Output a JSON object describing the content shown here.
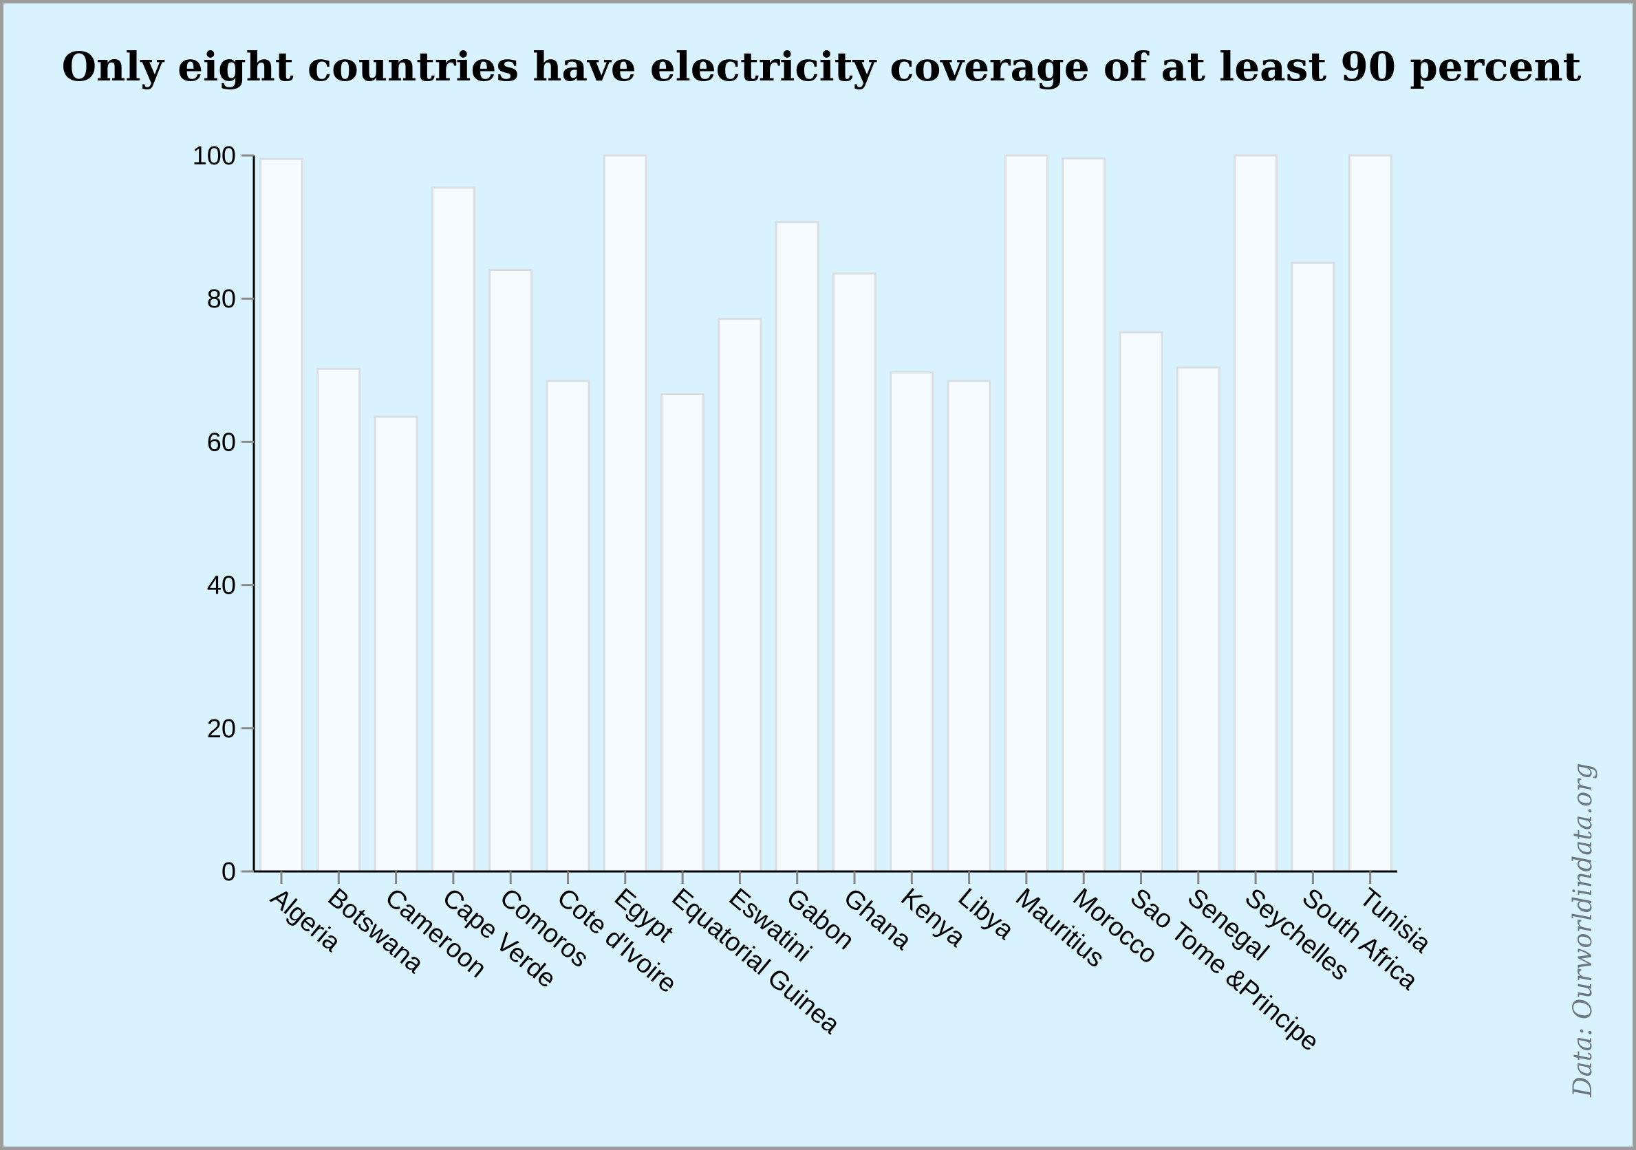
{
  "chart_data": {
    "type": "bar",
    "title": "Only eight countries have electricity coverage of at least 90 percent",
    "xlabel": "",
    "ylabel": "",
    "ylim": [
      0,
      100
    ],
    "yticks": [
      "0",
      "20",
      "40",
      "60",
      "80",
      "100"
    ],
    "categories": [
      "Algeria",
      "Botswana",
      "Cameroon",
      "Cape Verde",
      "Comoros",
      "Cote d'Ivoire",
      "Egypt",
      "Equatorial Guinea",
      "Eswatini",
      "Gabon",
      "Ghana",
      "Kenya",
      "Libya",
      "Mauritius",
      "Morocco",
      "Sao Tome &Principe",
      "Senegal",
      "Seychelles",
      "South Africa",
      "Tunisia"
    ],
    "values": [
      99.5,
      70.2,
      63.5,
      95.5,
      84.0,
      68.5,
      100,
      66.7,
      77.2,
      90.7,
      83.5,
      69.7,
      68.5,
      100,
      99.6,
      75.3,
      70.4,
      100,
      85.0,
      100
    ],
    "grid": false,
    "legend": "none",
    "bar_fill": "#f5fbff",
    "bar_stroke": "#d9dee2",
    "background": "#d8f3fd"
  },
  "source_note": "Data: Ourworldindata.org"
}
